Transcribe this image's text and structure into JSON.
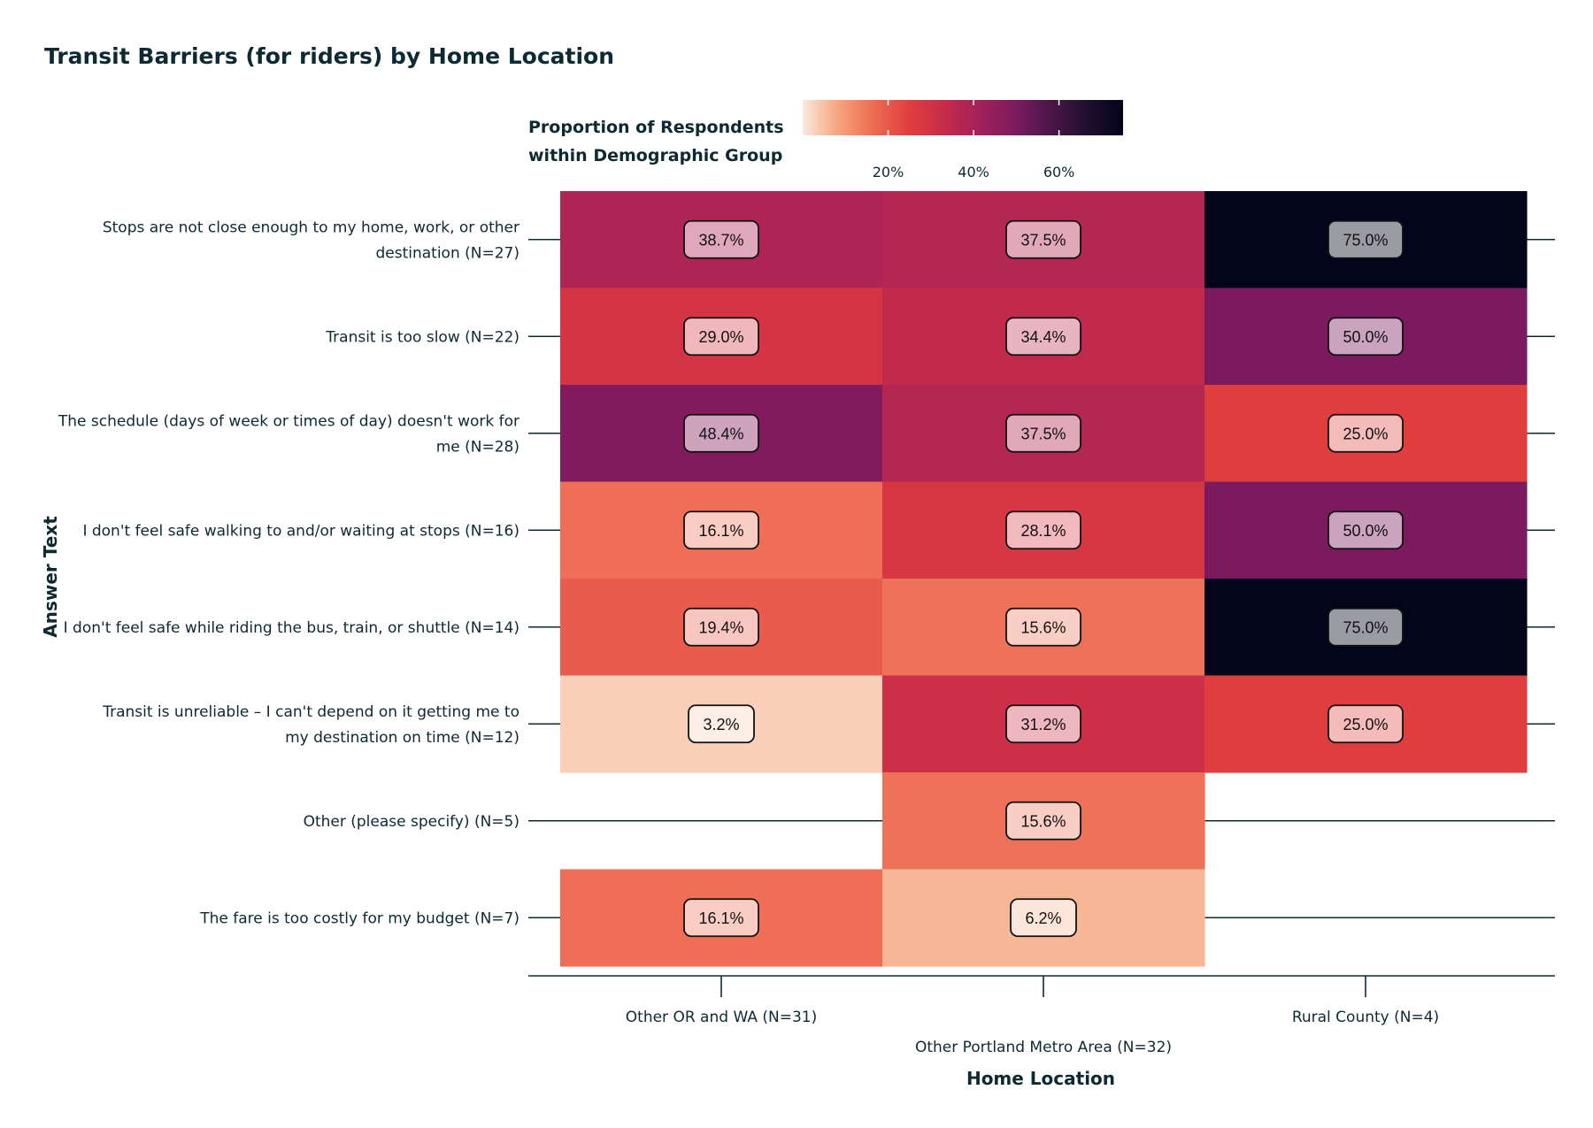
{
  "chart_data": {
    "type": "heatmap",
    "title": "Transit Barriers (for riders) by Home Location",
    "xlabel": "Home Location",
    "ylabel": "Answer Text",
    "legend": {
      "title_lines": [
        "Proportion of Respondents",
        "within Demographic Group"
      ],
      "ticks": [
        {
          "value": 0.2,
          "label": "20%"
        },
        {
          "value": 0.4,
          "label": "40%"
        },
        {
          "value": 0.6,
          "label": "60%"
        }
      ],
      "range": [
        0.0,
        0.75
      ],
      "placement": "top",
      "stops": [
        "#fbe9dd",
        "#f6a47c",
        "#ed6b52",
        "#e03e3e",
        "#c62a4b",
        "#a1215a",
        "#7b1a5e",
        "#4a1648",
        "#1e0f2e",
        "#03051a"
      ]
    },
    "columns": [
      "Other OR and WA (N=31)",
      "Other Portland Metro Area (N=32)",
      "Rural County (N=4)"
    ],
    "rows": [
      [
        "Stops are not close enough to my home, work, or other",
        "destination (N=27)"
      ],
      [
        "Transit is too slow (N=22)"
      ],
      [
        "The schedule (days of week or times of day) doesn't work for",
        "me (N=28)"
      ],
      [
        "I don't feel safe walking to and/or waiting at stops (N=16)"
      ],
      [
        "I don't feel safe while riding the bus, train, or shuttle (N=14)"
      ],
      [
        "Transit is unreliable – I can't depend on it getting me to",
        "my destination on time (N=12)"
      ],
      [
        "Other (please specify) (N=5)"
      ],
      [
        "The fare is too costly for my budget (N=7)"
      ]
    ],
    "values": [
      [
        0.387,
        0.375,
        0.75
      ],
      [
        0.29,
        0.344,
        0.5
      ],
      [
        0.484,
        0.375,
        0.25
      ],
      [
        0.161,
        0.281,
        0.5
      ],
      [
        0.194,
        0.156,
        0.75
      ],
      [
        0.032,
        0.312,
        0.25
      ],
      [
        null,
        0.156,
        null
      ],
      [
        0.161,
        0.062,
        null
      ]
    ],
    "labels": [
      [
        "38.7%",
        "37.5%",
        "75.0%"
      ],
      [
        "29.0%",
        "34.4%",
        "50.0%"
      ],
      [
        "48.4%",
        "37.5%",
        "25.0%"
      ],
      [
        "16.1%",
        "28.1%",
        "50.0%"
      ],
      [
        "19.4%",
        "15.6%",
        "75.0%"
      ],
      [
        "3.2%",
        "31.2%",
        "25.0%"
      ],
      [
        null,
        "15.6%",
        null
      ],
      [
        "16.1%",
        "6.2%",
        null
      ]
    ]
  }
}
